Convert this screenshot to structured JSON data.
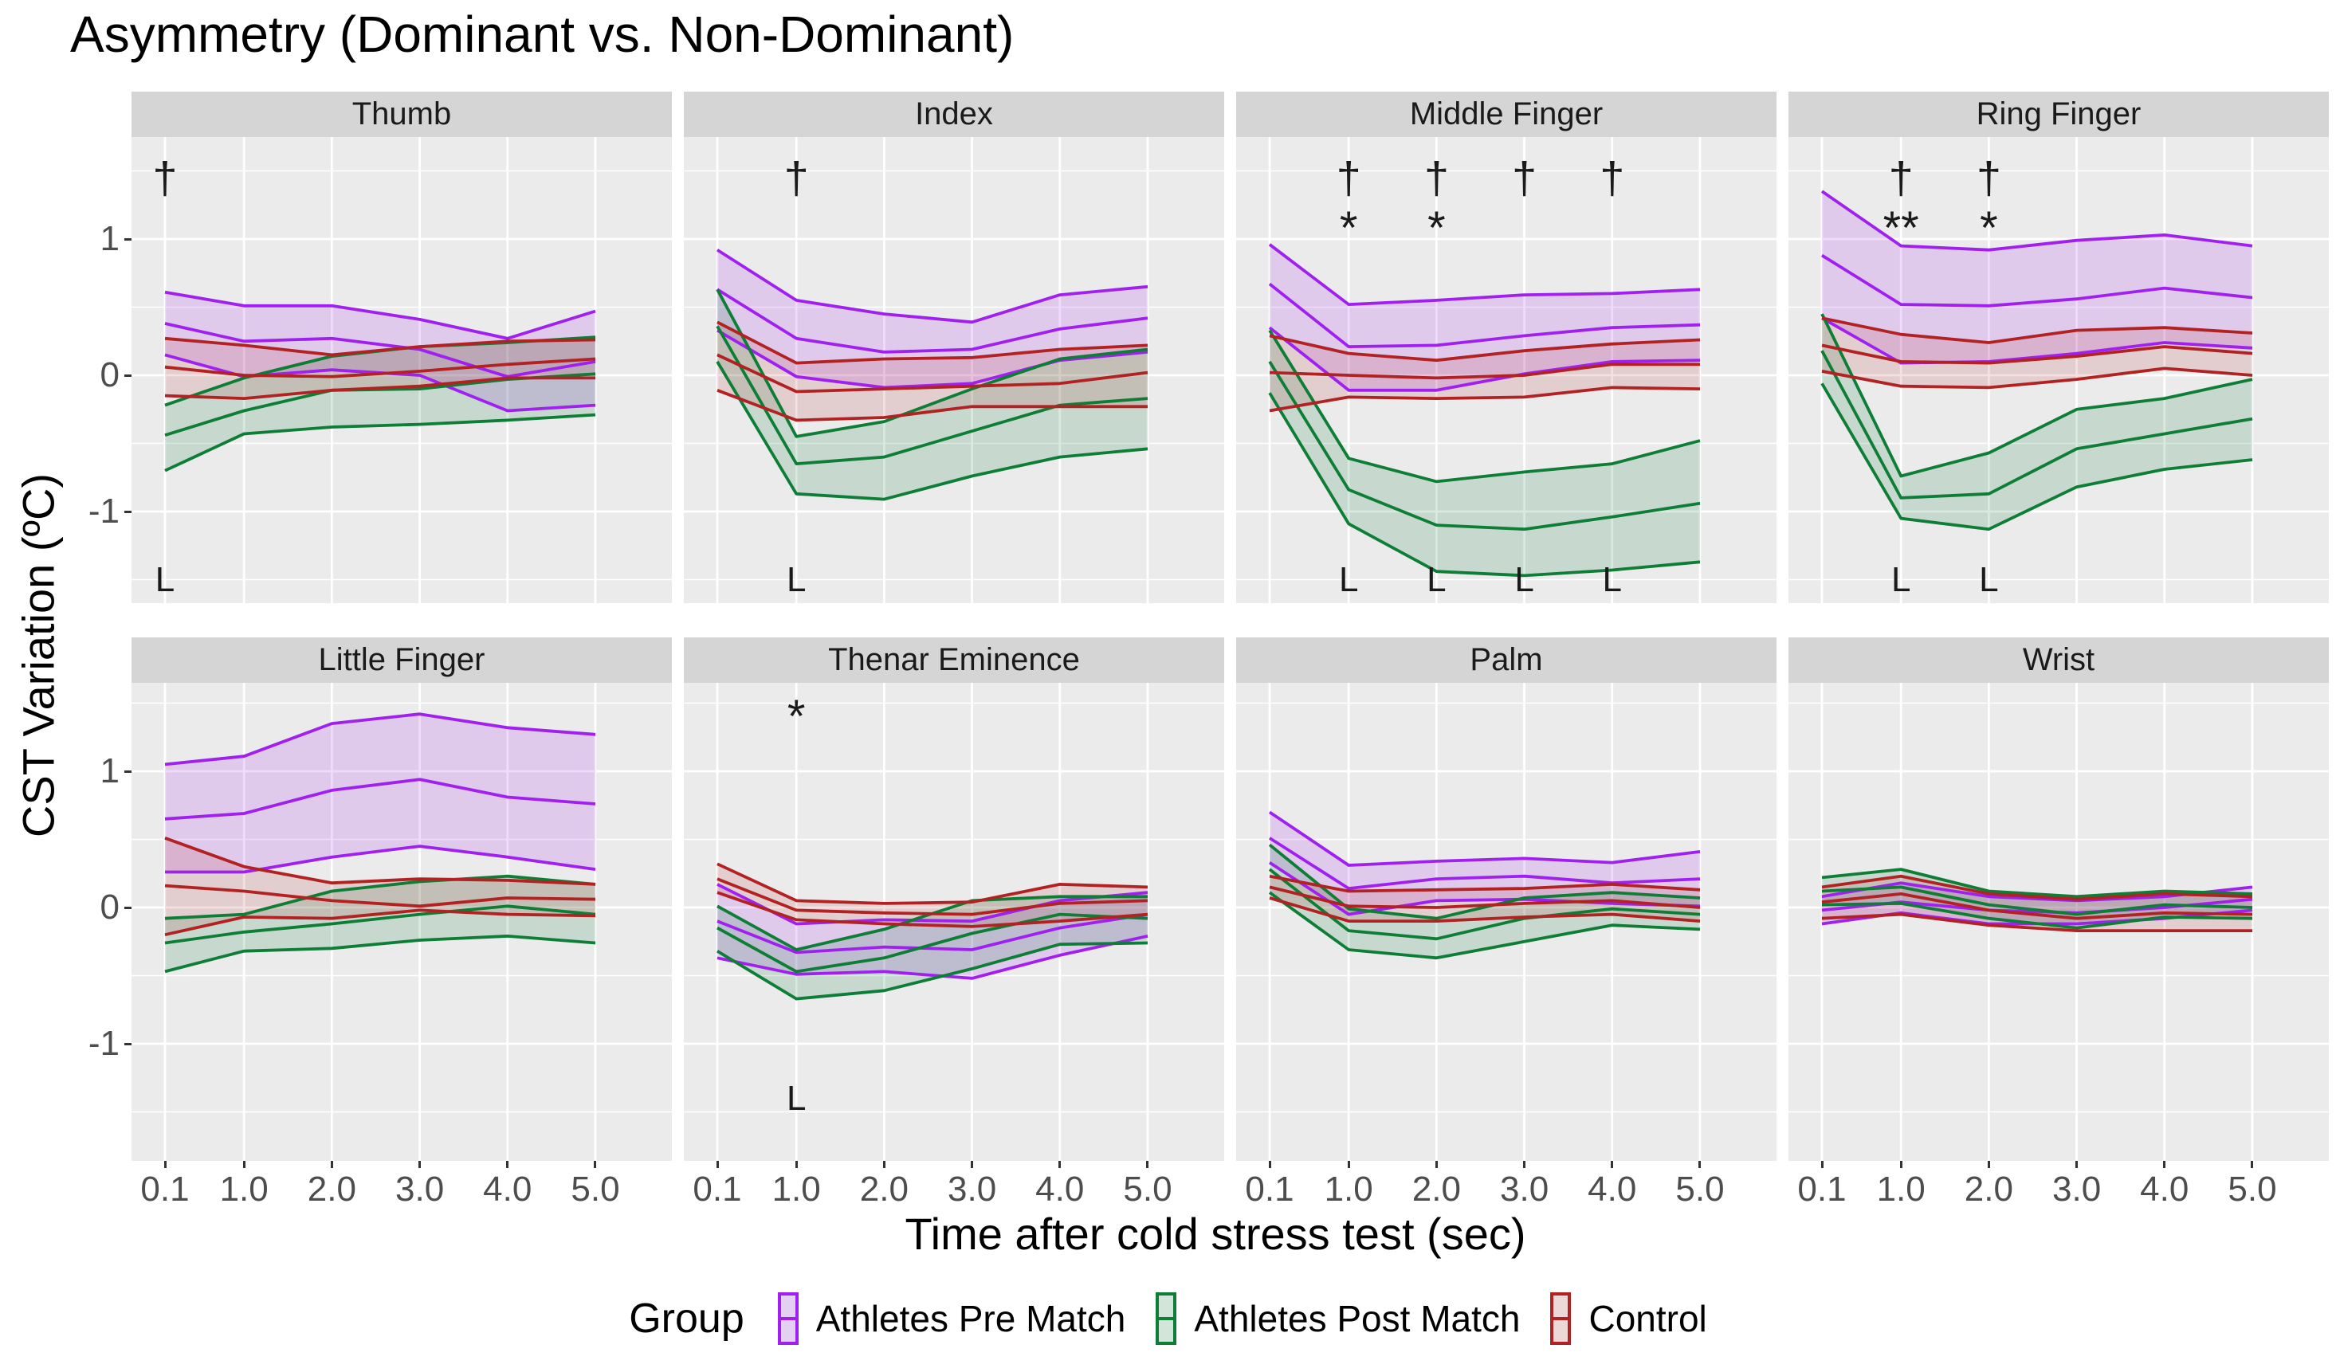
{
  "title": "Asymmetry (Dominant vs. Non-Dominant)",
  "axes": {
    "x_title": "Time after cold stress test  (sec)",
    "y_title": "CST Variation (ºC)",
    "x_tick_labels": [
      "0.1",
      "1.0",
      "2.0",
      "3.0",
      "4.0",
      "5.0"
    ],
    "y_tick_labels": [
      "1",
      "0",
      "-1"
    ],
    "y_tick_values": [
      1,
      0,
      -1
    ]
  },
  "legend": {
    "title": "Group",
    "entries": [
      {
        "label": "Athletes Pre Match",
        "color": "#a020f0",
        "fill": "#e3d0f3"
      },
      {
        "label": "Athletes Post Match",
        "color": "#0e7d35",
        "fill": "#d3e4d8"
      },
      {
        "label": "Control",
        "color": "#b22222",
        "fill": "#ecd8d6"
      }
    ]
  },
  "chart_data": {
    "type": "area",
    "title": "Asymmetry (Dominant vs. Non-Dominant)",
    "xlabel": "Time after cold stress test  (sec)",
    "ylabel": "CST Variation (ºC)",
    "x": [
      0.1,
      1.0,
      2.0,
      3.0,
      4.0,
      5.0
    ],
    "ylim": [
      -1.75,
      1.75
    ],
    "grid": "on",
    "legend_position": "bottom",
    "groups": [
      {
        "id": "pre",
        "name": "Athletes Pre Match",
        "color": "#a020f0",
        "fill": "rgba(160,32,240,0.16)"
      },
      {
        "id": "post",
        "name": "Athletes Post Match",
        "color": "#0e7d35",
        "fill": "rgba(14,125,53,0.16)"
      },
      {
        "id": "control",
        "name": "Control",
        "color": "#b22222",
        "fill": "rgba(178,34,34,0.14)"
      }
    ],
    "facets": [
      {
        "name": "Thumb",
        "series": {
          "pre": {
            "upper": [
              0.61,
              0.51,
              0.51,
              0.41,
              0.27,
              0.47
            ],
            "mean": [
              0.38,
              0.25,
              0.27,
              0.19,
              -0.01,
              0.1
            ],
            "lower": [
              0.15,
              -0.01,
              0.04,
              0.0,
              -0.26,
              -0.22
            ]
          },
          "post": {
            "upper": [
              -0.22,
              -0.02,
              0.14,
              0.21,
              0.24,
              0.28
            ],
            "mean": [
              -0.44,
              -0.26,
              -0.11,
              -0.1,
              -0.03,
              0.01
            ],
            "lower": [
              -0.7,
              -0.43,
              -0.38,
              -0.36,
              -0.33,
              -0.29
            ]
          },
          "control": {
            "upper": [
              0.27,
              0.22,
              0.15,
              0.21,
              0.25,
              0.26
            ],
            "mean": [
              0.06,
              0.0,
              -0.01,
              0.03,
              0.08,
              0.12
            ],
            "lower": [
              -0.15,
              -0.17,
              -0.11,
              -0.08,
              -0.02,
              -0.02
            ]
          }
        },
        "annotations": [
          {
            "symbol": "†",
            "x": 0.1,
            "y": 1.45
          },
          {
            "symbol": "L",
            "x": 0.1,
            "y": -1.5
          }
        ]
      },
      {
        "name": "Index",
        "series": {
          "pre": {
            "upper": [
              0.92,
              0.55,
              0.45,
              0.39,
              0.59,
              0.65
            ],
            "mean": [
              0.63,
              0.27,
              0.17,
              0.19,
              0.34,
              0.42
            ],
            "lower": [
              0.33,
              -0.01,
              -0.09,
              -0.06,
              0.11,
              0.17
            ]
          },
          "post": {
            "upper": [
              0.63,
              -0.45,
              -0.34,
              -0.1,
              0.12,
              0.19
            ],
            "mean": [
              0.36,
              -0.65,
              -0.6,
              -0.41,
              -0.22,
              -0.17
            ],
            "lower": [
              0.1,
              -0.87,
              -0.91,
              -0.74,
              -0.6,
              -0.54
            ]
          },
          "control": {
            "upper": [
              0.39,
              0.09,
              0.12,
              0.13,
              0.19,
              0.22
            ],
            "mean": [
              0.15,
              -0.12,
              -0.1,
              -0.08,
              -0.06,
              0.02
            ],
            "lower": [
              -0.11,
              -0.33,
              -0.31,
              -0.23,
              -0.23,
              -0.23
            ]
          }
        },
        "annotations": [
          {
            "symbol": "†",
            "x": 1.0,
            "y": 1.45
          },
          {
            "symbol": "L",
            "x": 1.0,
            "y": -1.5
          }
        ]
      },
      {
        "name": "Middle Finger",
        "series": {
          "pre": {
            "upper": [
              0.96,
              0.52,
              0.55,
              0.59,
              0.6,
              0.63
            ],
            "mean": [
              0.67,
              0.21,
              0.22,
              0.29,
              0.35,
              0.37
            ],
            "lower": [
              0.35,
              -0.11,
              -0.11,
              0.01,
              0.1,
              0.11
            ]
          },
          "post": {
            "upper": [
              0.33,
              -0.61,
              -0.78,
              -0.71,
              -0.65,
              -0.48
            ],
            "mean": [
              0.1,
              -0.84,
              -1.1,
              -1.13,
              -1.04,
              -0.94
            ],
            "lower": [
              -0.13,
              -1.09,
              -1.44,
              -1.47,
              -1.43,
              -1.37
            ]
          },
          "control": {
            "upper": [
              0.29,
              0.16,
              0.11,
              0.18,
              0.23,
              0.26
            ],
            "mean": [
              0.02,
              0.0,
              -0.02,
              0.0,
              0.08,
              0.08
            ],
            "lower": [
              -0.26,
              -0.16,
              -0.17,
              -0.16,
              -0.09,
              -0.1
            ]
          }
        },
        "annotations": [
          {
            "symbol": "†",
            "x": 1.0,
            "y": 1.45
          },
          {
            "symbol": "†",
            "x": 2.0,
            "y": 1.45
          },
          {
            "symbol": "†",
            "x": 3.0,
            "y": 1.45
          },
          {
            "symbol": "†",
            "x": 4.0,
            "y": 1.45
          },
          {
            "symbol": "*",
            "x": 1.0,
            "y": 1.08
          },
          {
            "symbol": "*",
            "x": 2.0,
            "y": 1.08
          },
          {
            "symbol": "L",
            "x": 1.0,
            "y": -1.5
          },
          {
            "symbol": "L",
            "x": 2.0,
            "y": -1.5
          },
          {
            "symbol": "L",
            "x": 3.0,
            "y": -1.5
          },
          {
            "symbol": "L",
            "x": 4.0,
            "y": -1.5
          }
        ]
      },
      {
        "name": "Ring Finger",
        "series": {
          "pre": {
            "upper": [
              1.35,
              0.95,
              0.92,
              0.99,
              1.03,
              0.95
            ],
            "mean": [
              0.88,
              0.52,
              0.51,
              0.56,
              0.64,
              0.57
            ],
            "lower": [
              0.42,
              0.09,
              0.1,
              0.16,
              0.24,
              0.2
            ]
          },
          "post": {
            "upper": [
              0.45,
              -0.74,
              -0.57,
              -0.25,
              -0.17,
              -0.03
            ],
            "mean": [
              0.18,
              -0.9,
              -0.87,
              -0.54,
              -0.43,
              -0.32
            ],
            "lower": [
              -0.06,
              -1.05,
              -1.13,
              -0.82,
              -0.69,
              -0.62
            ]
          },
          "control": {
            "upper": [
              0.42,
              0.3,
              0.24,
              0.33,
              0.35,
              0.31
            ],
            "mean": [
              0.22,
              0.1,
              0.09,
              0.14,
              0.21,
              0.16
            ],
            "lower": [
              0.03,
              -0.08,
              -0.09,
              -0.03,
              0.05,
              0.0
            ]
          }
        },
        "annotations": [
          {
            "symbol": "†",
            "x": 1.0,
            "y": 1.45
          },
          {
            "symbol": "†",
            "x": 2.0,
            "y": 1.45
          },
          {
            "symbol": "**",
            "x": 1.0,
            "y": 1.08
          },
          {
            "symbol": "*",
            "x": 2.0,
            "y": 1.08
          },
          {
            "symbol": "L",
            "x": 1.0,
            "y": -1.5
          },
          {
            "symbol": "L",
            "x": 2.0,
            "y": -1.5
          }
        ]
      },
      {
        "name": "Little Finger",
        "series": {
          "pre": {
            "upper": [
              1.05,
              1.11,
              1.35,
              1.42,
              1.32,
              1.27
            ],
            "mean": [
              0.65,
              0.69,
              0.86,
              0.94,
              0.81,
              0.76
            ],
            "lower": [
              0.26,
              0.26,
              0.37,
              0.45,
              0.37,
              0.28
            ]
          },
          "post": {
            "upper": [
              -0.08,
              -0.05,
              0.12,
              0.19,
              0.23,
              0.17
            ],
            "mean": [
              -0.26,
              -0.18,
              -0.12,
              -0.05,
              0.01,
              -0.05
            ],
            "lower": [
              -0.47,
              -0.32,
              -0.3,
              -0.24,
              -0.21,
              -0.26
            ]
          },
          "control": {
            "upper": [
              0.51,
              0.3,
              0.18,
              0.21,
              0.2,
              0.17
            ],
            "mean": [
              0.16,
              0.12,
              0.05,
              0.01,
              0.07,
              0.06
            ],
            "lower": [
              -0.2,
              -0.07,
              -0.08,
              -0.02,
              -0.05,
              -0.06
            ]
          }
        },
        "annotations": []
      },
      {
        "name": "Thenar Eminence",
        "series": {
          "pre": {
            "upper": [
              0.17,
              -0.12,
              -0.09,
              -0.1,
              0.05,
              0.11
            ],
            "mean": [
              -0.1,
              -0.33,
              -0.29,
              -0.31,
              -0.15,
              -0.05
            ],
            "lower": [
              -0.37,
              -0.49,
              -0.47,
              -0.52,
              -0.35,
              -0.21
            ]
          },
          "post": {
            "upper": [
              0.01,
              -0.31,
              -0.16,
              0.05,
              0.08,
              0.08
            ],
            "mean": [
              -0.15,
              -0.47,
              -0.37,
              -0.19,
              -0.05,
              -0.08
            ],
            "lower": [
              -0.32,
              -0.67,
              -0.61,
              -0.45,
              -0.27,
              -0.26
            ]
          },
          "control": {
            "upper": [
              0.32,
              0.05,
              0.03,
              0.04,
              0.17,
              0.15
            ],
            "mean": [
              0.21,
              -0.02,
              -0.04,
              -0.05,
              0.03,
              0.05
            ],
            "lower": [
              0.11,
              -0.09,
              -0.12,
              -0.14,
              -0.1,
              -0.05
            ]
          }
        },
        "annotations": [
          {
            "symbol": "*",
            "x": 1.0,
            "y": 1.4
          },
          {
            "symbol": "L",
            "x": 1.0,
            "y": -1.4
          }
        ]
      },
      {
        "name": "Palm",
        "series": {
          "pre": {
            "upper": [
              0.7,
              0.31,
              0.34,
              0.36,
              0.33,
              0.41
            ],
            "mean": [
              0.51,
              0.14,
              0.21,
              0.23,
              0.18,
              0.21
            ],
            "lower": [
              0.33,
              -0.05,
              0.05,
              0.06,
              0.03,
              0.01
            ]
          },
          "post": {
            "upper": [
              0.46,
              -0.01,
              -0.08,
              0.07,
              0.11,
              0.07
            ],
            "mean": [
              0.28,
              -0.17,
              -0.23,
              -0.08,
              -0.01,
              -0.05
            ],
            "lower": [
              0.11,
              -0.31,
              -0.37,
              -0.25,
              -0.13,
              -0.16
            ]
          },
          "control": {
            "upper": [
              0.23,
              0.12,
              0.13,
              0.14,
              0.17,
              0.13
            ],
            "mean": [
              0.15,
              0.01,
              0.0,
              0.03,
              0.05,
              0.0
            ],
            "lower": [
              0.07,
              -0.1,
              -0.1,
              -0.07,
              -0.05,
              -0.1
            ]
          }
        },
        "annotations": []
      },
      {
        "name": "Wrist",
        "series": {
          "pre": {
            "upper": [
              0.08,
              0.18,
              0.08,
              0.05,
              0.08,
              0.15
            ],
            "mean": [
              -0.02,
              0.04,
              -0.02,
              -0.04,
              0.0,
              0.06
            ],
            "lower": [
              -0.12,
              -0.04,
              -0.12,
              -0.12,
              -0.08,
              -0.02
            ]
          },
          "post": {
            "upper": [
              0.22,
              0.28,
              0.12,
              0.08,
              0.12,
              0.1
            ],
            "mean": [
              0.12,
              0.15,
              0.02,
              -0.05,
              0.02,
              0.0
            ],
            "lower": [
              0.02,
              0.03,
              -0.08,
              -0.15,
              -0.07,
              -0.08
            ]
          },
          "control": {
            "upper": [
              0.15,
              0.23,
              0.1,
              0.06,
              0.1,
              0.08
            ],
            "mean": [
              0.04,
              0.1,
              -0.02,
              -0.08,
              -0.04,
              -0.05
            ],
            "lower": [
              -0.08,
              -0.05,
              -0.13,
              -0.17,
              -0.17,
              -0.17
            ]
          }
        },
        "annotations": []
      }
    ]
  }
}
